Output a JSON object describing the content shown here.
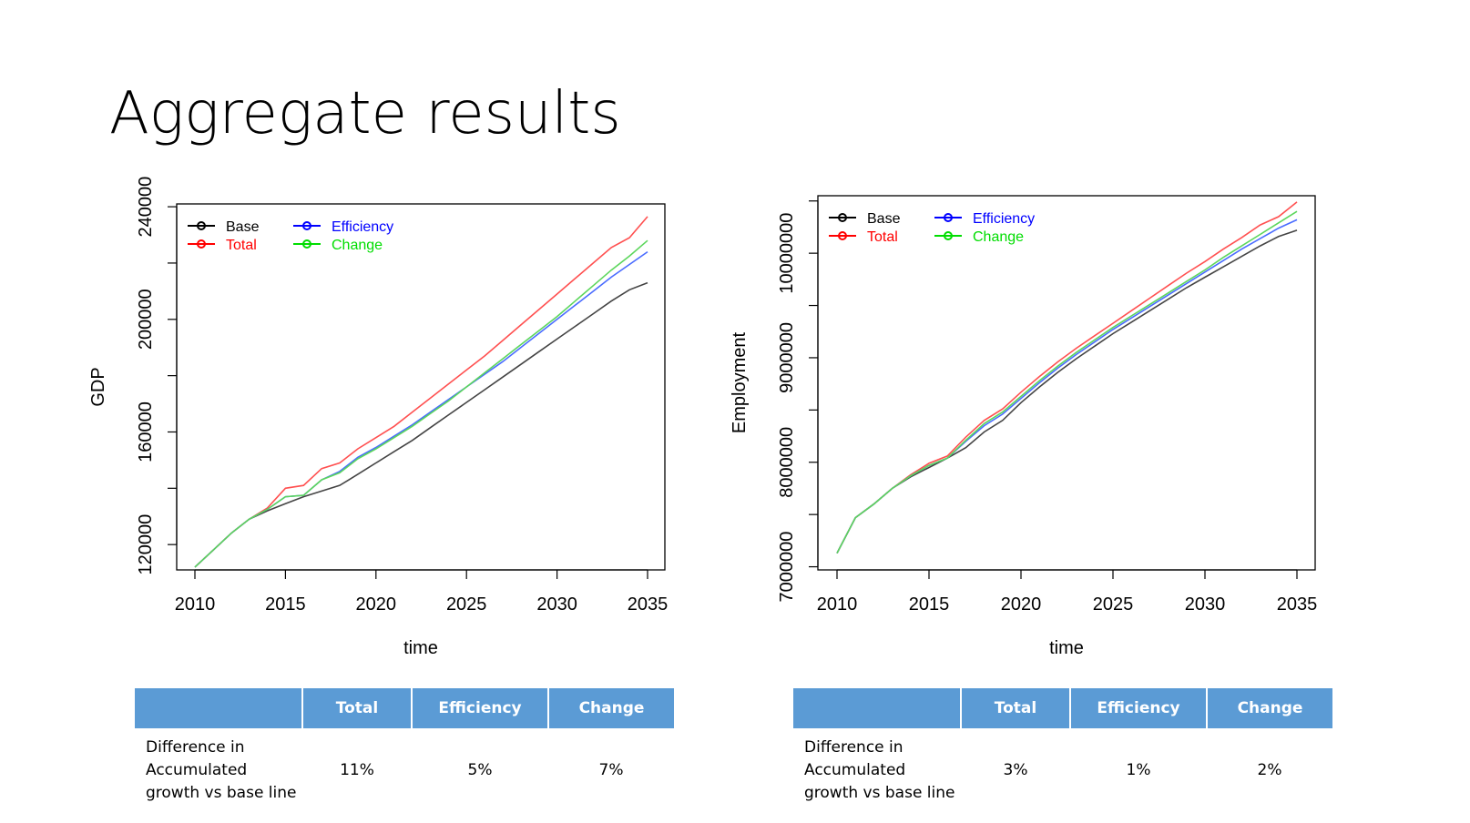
{
  "slide": {
    "title": "Aggregate results"
  },
  "chart_data": [
    {
      "type": "line",
      "title": "",
      "xlabel": "time",
      "ylabel": "GDP",
      "xlim": [
        2010,
        2035
      ],
      "ylim": [
        111000,
        241000
      ],
      "x_ticks": [
        2010,
        2015,
        2020,
        2025,
        2030,
        2035
      ],
      "y_ticks_labeled": [
        120000,
        160000,
        200000,
        240000
      ],
      "y_ticks_minor": [
        140000,
        180000,
        220000
      ],
      "legend": {
        "placement": "top-left",
        "entries": [
          {
            "label": "Base",
            "color": "#000000"
          },
          {
            "label": "Efficiency",
            "color": "#0000ff"
          },
          {
            "label": "Total",
            "color": "#ff0000"
          },
          {
            "label": "Change",
            "color": "#00dd00"
          }
        ]
      },
      "x": [
        2010,
        2011,
        2012,
        2013,
        2014,
        2015,
        2016,
        2017,
        2018,
        2019,
        2020,
        2021,
        2022,
        2023,
        2024,
        2025,
        2026,
        2027,
        2028,
        2029,
        2030,
        2031,
        2032,
        2033,
        2034,
        2035
      ],
      "series": [
        {
          "name": "Base",
          "color": "#444444",
          "values": [
            112000,
            118000,
            124000,
            129000,
            132000,
            134500,
            137000,
            139000,
            141000,
            145000,
            149000,
            153000,
            157000,
            161500,
            166000,
            170500,
            175000,
            179500,
            184000,
            188500,
            193000,
            197500,
            202000,
            206500,
            210500,
            213000
          ]
        },
        {
          "name": "Total",
          "color": "#ff5050",
          "values": [
            112000,
            118000,
            124000,
            129000,
            133000,
            140000,
            141000,
            147000,
            149000,
            154000,
            158000,
            162000,
            167000,
            172000,
            177000,
            182000,
            187000,
            192500,
            198000,
            203500,
            209000,
            214500,
            220000,
            225500,
            229000,
            236500
          ]
        },
        {
          "name": "Efficiency",
          "color": "#4a6cff",
          "values": [
            112000,
            118000,
            124000,
            129000,
            132500,
            137000,
            137500,
            143000,
            146000,
            151000,
            154500,
            158500,
            162500,
            167000,
            171500,
            176000,
            180500,
            185000,
            190000,
            195000,
            200000,
            205000,
            210000,
            215000,
            219500,
            224000
          ]
        },
        {
          "name": "Change",
          "color": "#5cd65c",
          "values": [
            112000,
            118000,
            124000,
            129000,
            132500,
            137000,
            137500,
            143000,
            145500,
            150500,
            154000,
            158000,
            162000,
            166500,
            171000,
            176000,
            181000,
            186000,
            191000,
            196000,
            201000,
            206500,
            212000,
            217500,
            222500,
            228000
          ]
        }
      ]
    },
    {
      "type": "line",
      "title": "",
      "xlabel": "time",
      "ylabel": "Employment",
      "xlim": [
        2010,
        2035
      ],
      "ylim": [
        6970000,
        10550000
      ],
      "x_ticks": [
        2010,
        2015,
        2020,
        2025,
        2030,
        2035
      ],
      "y_ticks_labeled": [
        7000000,
        8000000,
        9000000,
        10000000
      ],
      "y_ticks_minor": [
        7500000,
        8500000,
        9500000,
        10500000
      ],
      "legend": {
        "placement": "top-left",
        "entries": [
          {
            "label": "Base",
            "color": "#000000"
          },
          {
            "label": "Efficiency",
            "color": "#0000ff"
          },
          {
            "label": "Total",
            "color": "#ff0000"
          },
          {
            "label": "Change",
            "color": "#00dd00"
          }
        ]
      },
      "x": [
        2010,
        2011,
        2012,
        2013,
        2014,
        2015,
        2016,
        2017,
        2018,
        2019,
        2020,
        2021,
        2022,
        2023,
        2024,
        2025,
        2026,
        2027,
        2028,
        2029,
        2030,
        2031,
        2032,
        2033,
        2034,
        2035
      ],
      "series": [
        {
          "name": "Base",
          "color": "#444444",
          "values": [
            7130000,
            7470000,
            7600000,
            7750000,
            7860000,
            7950000,
            8040000,
            8140000,
            8290000,
            8400000,
            8570000,
            8720000,
            8860000,
            8990000,
            9110000,
            9230000,
            9340000,
            9450000,
            9560000,
            9670000,
            9770000,
            9870000,
            9970000,
            10070000,
            10160000,
            10220000
          ]
        },
        {
          "name": "Total",
          "color": "#ff5050",
          "values": [
            7130000,
            7470000,
            7600000,
            7750000,
            7880000,
            7990000,
            8060000,
            8240000,
            8400000,
            8510000,
            8670000,
            8820000,
            8960000,
            9090000,
            9210000,
            9330000,
            9450000,
            9570000,
            9690000,
            9810000,
            9920000,
            10040000,
            10150000,
            10270000,
            10350000,
            10490000
          ]
        },
        {
          "name": "Efficiency",
          "color": "#4a6cff",
          "values": [
            7130000,
            7470000,
            7600000,
            7750000,
            7870000,
            7970000,
            8040000,
            8200000,
            8350000,
            8460000,
            8610000,
            8760000,
            8900000,
            9030000,
            9150000,
            9270000,
            9380000,
            9490000,
            9600000,
            9710000,
            9820000,
            9930000,
            10040000,
            10140000,
            10240000,
            10320000
          ]
        },
        {
          "name": "Change",
          "color": "#5cd65c",
          "values": [
            7130000,
            7470000,
            7600000,
            7750000,
            7870000,
            7970000,
            8040000,
            8210000,
            8370000,
            8480000,
            8630000,
            8780000,
            8920000,
            9050000,
            9170000,
            9290000,
            9400000,
            9510000,
            9620000,
            9730000,
            9840000,
            9960000,
            10070000,
            10180000,
            10290000,
            10400000
          ]
        }
      ]
    }
  ],
  "tables": [
    {
      "headers": [
        "",
        "Total",
        "Efficiency",
        "Change"
      ],
      "row_label": [
        "Difference in",
        "Accumulated",
        "growth vs base line"
      ],
      "values": [
        "11%",
        "5%",
        "7%"
      ]
    },
    {
      "headers": [
        "",
        "Total",
        "Efficiency",
        "Change"
      ],
      "row_label": [
        "Difference in",
        "Accumulated",
        "growth vs base line"
      ],
      "values": [
        "3%",
        "1%",
        "2%"
      ]
    }
  ]
}
